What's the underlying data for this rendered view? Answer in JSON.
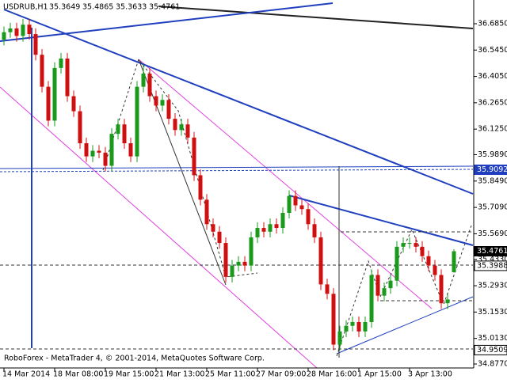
{
  "chart_data": {
    "type": "candlestick",
    "symbol": "USDRUB,H1",
    "footer": "RoboForex - MetaTrader 4, © 2001-2014, MetaQuotes Software Corp.",
    "up_color": "#1a9a1a",
    "down_color": "#d01010",
    "categories": [
      "14 Mar 2014",
      null,
      null,
      null,
      null,
      null,
      null,
      null,
      "18 Mar 08:00",
      null,
      null,
      null,
      null,
      null,
      null,
      null,
      "19 Mar 15:00",
      null,
      null,
      null,
      null,
      null,
      null,
      null,
      "21 Mar 13:00",
      null,
      null,
      null,
      null,
      null,
      null,
      null,
      "25 Mar 11:00",
      null,
      null,
      null,
      null,
      null,
      null,
      null,
      "27 Mar 09:00",
      null,
      null,
      null,
      null,
      null,
      null,
      null,
      "28 Mar 16:00",
      null,
      null,
      null,
      null,
      null,
      null,
      null,
      "1 Apr 15:00",
      null,
      null,
      null,
      null,
      null,
      null,
      null,
      "3 Apr 13:00",
      null,
      null,
      null,
      null,
      null,
      null,
      null
    ],
    "open": [
      36.6,
      36.64,
      36.66,
      36.62,
      36.68,
      36.63,
      36.52,
      36.35,
      36.17,
      36.45,
      36.5,
      36.3,
      36.22,
      36.05,
      35.98,
      36.01,
      36.0,
      35.93,
      36.1,
      36.15,
      36.05,
      35.98,
      36.35,
      36.42,
      36.3,
      36.25,
      36.28,
      36.18,
      36.12,
      36.15,
      36.08,
      35.88,
      35.75,
      35.62,
      35.58,
      35.52,
      35.34,
      35.4,
      35.42,
      35.4,
      35.55,
      35.6,
      35.58,
      35.62,
      35.6,
      35.68,
      35.77,
      35.72,
      35.7,
      35.62,
      35.55,
      35.3,
      35.25,
      34.98,
      35.05,
      35.08,
      35.1,
      35.05,
      35.1,
      35.35,
      35.24,
      35.28,
      35.32,
      35.5,
      35.52,
      35.52,
      35.5,
      35.45,
      35.4,
      35.35,
      35.2,
      35.3649
    ],
    "high": [
      36.67,
      36.69,
      36.69,
      36.71,
      36.71,
      36.66,
      36.55,
      36.38,
      36.48,
      36.53,
      36.53,
      36.33,
      36.25,
      36.08,
      36.04,
      36.04,
      36.03,
      36.13,
      36.18,
      36.18,
      36.08,
      36.38,
      36.47,
      36.45,
      36.33,
      36.31,
      36.31,
      36.21,
      36.18,
      36.18,
      36.11,
      35.91,
      35.78,
      35.65,
      35.61,
      35.55,
      35.43,
      35.45,
      35.45,
      35.58,
      35.63,
      35.63,
      35.65,
      35.65,
      35.71,
      35.8,
      35.8,
      35.75,
      35.73,
      35.65,
      35.58,
      35.33,
      35.28,
      35.08,
      35.11,
      35.13,
      35.13,
      35.13,
      35.38,
      35.38,
      35.31,
      35.35,
      35.53,
      35.55,
      35.55,
      35.55,
      35.53,
      35.48,
      35.43,
      35.38,
      35.25,
      35.4865
    ],
    "low": [
      36.57,
      36.61,
      36.59,
      36.59,
      36.6,
      36.49,
      36.32,
      36.14,
      36.14,
      36.42,
      36.27,
      36.19,
      36.02,
      35.95,
      35.95,
      35.97,
      35.9,
      35.9,
      36.07,
      36.02,
      35.95,
      35.95,
      36.32,
      36.27,
      36.22,
      36.22,
      36.15,
      36.09,
      36.09,
      36.05,
      35.85,
      35.72,
      35.59,
      35.55,
      35.49,
      35.31,
      35.31,
      35.37,
      35.37,
      35.37,
      35.52,
      35.55,
      35.55,
      35.57,
      35.57,
      35.65,
      35.69,
      35.67,
      35.59,
      35.52,
      35.27,
      35.22,
      34.95,
      34.95,
      35.02,
      35.05,
      35.02,
      35.02,
      35.07,
      35.21,
      35.21,
      35.25,
      35.29,
      35.47,
      35.49,
      35.47,
      35.42,
      35.37,
      35.32,
      35.17,
      35.17,
      35.3633
    ],
    "close": [
      36.64,
      36.66,
      36.62,
      36.68,
      36.63,
      36.52,
      36.35,
      36.17,
      36.45,
      36.5,
      36.3,
      36.22,
      36.05,
      35.98,
      36.01,
      36.0,
      35.93,
      36.1,
      36.15,
      36.05,
      35.98,
      36.35,
      36.42,
      36.3,
      36.25,
      36.28,
      36.18,
      36.12,
      36.15,
      36.08,
      35.88,
      35.75,
      35.62,
      35.58,
      35.52,
      35.34,
      35.4,
      35.42,
      35.4,
      35.55,
      35.6,
      35.58,
      35.62,
      35.6,
      35.68,
      35.77,
      35.72,
      35.7,
      35.62,
      35.55,
      35.3,
      35.25,
      34.98,
      35.05,
      35.08,
      35.1,
      35.05,
      35.1,
      35.35,
      35.24,
      35.28,
      35.32,
      35.5,
      35.52,
      35.52,
      35.5,
      35.45,
      35.4,
      35.35,
      35.2,
      35.22,
      35.4761
    ],
    "ylim": [
      34.856,
      36.811
    ],
    "yticks": [
      {
        "value": 36.685,
        "label": "36.6850"
      },
      {
        "value": 36.545,
        "label": "36.5450"
      },
      {
        "value": 36.405,
        "label": "36.4050"
      },
      {
        "value": 36.265,
        "label": "36.2650"
      },
      {
        "value": 36.125,
        "label": "36.1250"
      },
      {
        "value": 35.989,
        "label": "35.9890"
      },
      {
        "value": 35.849,
        "label": "35.8490"
      },
      {
        "value": 35.709,
        "label": "35.7090"
      },
      {
        "value": 35.569,
        "label": "35.5690"
      },
      {
        "value": 35.433,
        "label": "35.4330"
      },
      {
        "value": 35.293,
        "label": "35.2930"
      },
      {
        "value": 35.153,
        "label": "35.1530"
      },
      {
        "value": 35.013,
        "label": "35.0130"
      },
      {
        "value": 34.877,
        "label": "34.8770"
      }
    ],
    "price_levels": [
      35.9092,
      35.4761,
      35.3988,
      34.9509
    ],
    "price_level_colors": [
      "#1f3fbf",
      "#000000",
      "#ffffff",
      "#ffffff"
    ]
  }
}
